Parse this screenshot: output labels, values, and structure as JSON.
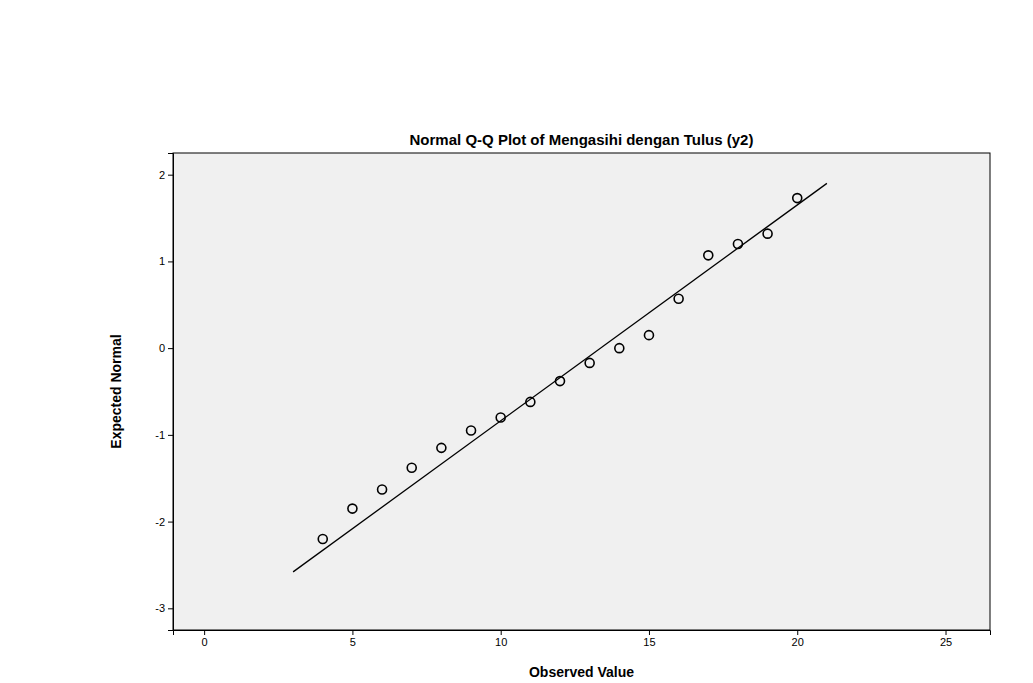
{
  "chart_data": {
    "type": "scatter",
    "title": "Normal Q-Q Plot of Mengasihi dengan Tulus (y2)",
    "x_label": "Observed Value",
    "y_label": "Expected Normal",
    "xlim": [
      -1.05,
      26.5
    ],
    "ylim": [
      -3.25,
      2.25
    ],
    "xticks": [
      0,
      5,
      10,
      15,
      20,
      25
    ],
    "yticks": [
      -3,
      -2,
      -1,
      0,
      1,
      2
    ],
    "series": [
      {
        "type": "scatter",
        "marker": "circle",
        "color": "#000000",
        "x": [
          4,
          5,
          6,
          7,
          8,
          9,
          10,
          11,
          12,
          13,
          14,
          15,
          16,
          17,
          18,
          19,
          20
        ],
        "values": [
          -2.2,
          -1.85,
          -1.63,
          -1.38,
          -1.15,
          -0.95,
          -0.8,
          -0.62,
          -0.38,
          -0.17,
          0.0,
          0.15,
          0.57,
          1.07,
          1.2,
          1.32,
          1.73
        ]
      },
      {
        "type": "line",
        "line_style": "solid",
        "color": "#000000",
        "x": [
          3,
          21
        ],
        "values": [
          -2.58,
          1.9
        ]
      }
    ]
  }
}
